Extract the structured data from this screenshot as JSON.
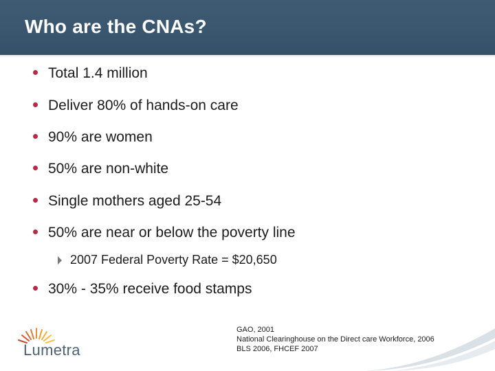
{
  "slide": {
    "title": "Who are the CNAs?",
    "bullets": [
      "Total 1.4 million",
      "Deliver 80% of hands-on care",
      "90% are women",
      "50% are non-white",
      "Single mothers aged 25-54",
      "50% are near or below the poverty line"
    ],
    "sub_bullet": "2007 Federal Poverty Rate = $20,650",
    "last_bullet": "30% - 35% receive food stamps",
    "citation": [
      "GAO, 2001",
      "National Clearinghouse on the Direct care Workforce, 2006",
      "BLS 2006, FHCEF 2007"
    ]
  },
  "logo": {
    "text": "Lumetra"
  },
  "colors": {
    "header": "#3f5b73",
    "bullet": "#b22c4a",
    "logo_text": "#4d6277"
  }
}
